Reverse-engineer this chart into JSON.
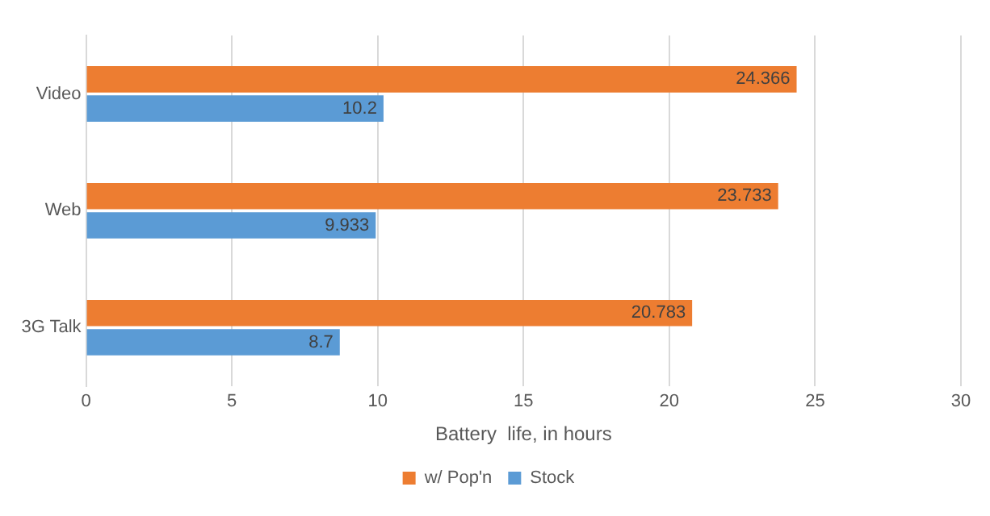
{
  "chart_data": {
    "type": "bar",
    "orientation": "horizontal",
    "categories": [
      "Video",
      "Web",
      "3G Talk"
    ],
    "series": [
      {
        "name": "w/ Pop'n",
        "color": "#ed7d31",
        "values": [
          24.366,
          23.733,
          20.783
        ]
      },
      {
        "name": "Stock",
        "color": "#5b9bd5",
        "values": [
          10.2,
          9.933,
          8.7
        ]
      }
    ],
    "xlabel": "Battery  life, in hours",
    "xlim": [
      0,
      30
    ],
    "xticks": [
      0,
      5,
      10,
      15,
      20,
      25,
      30
    ],
    "grid": "x",
    "legend": "bottom",
    "data_labels": true
  }
}
